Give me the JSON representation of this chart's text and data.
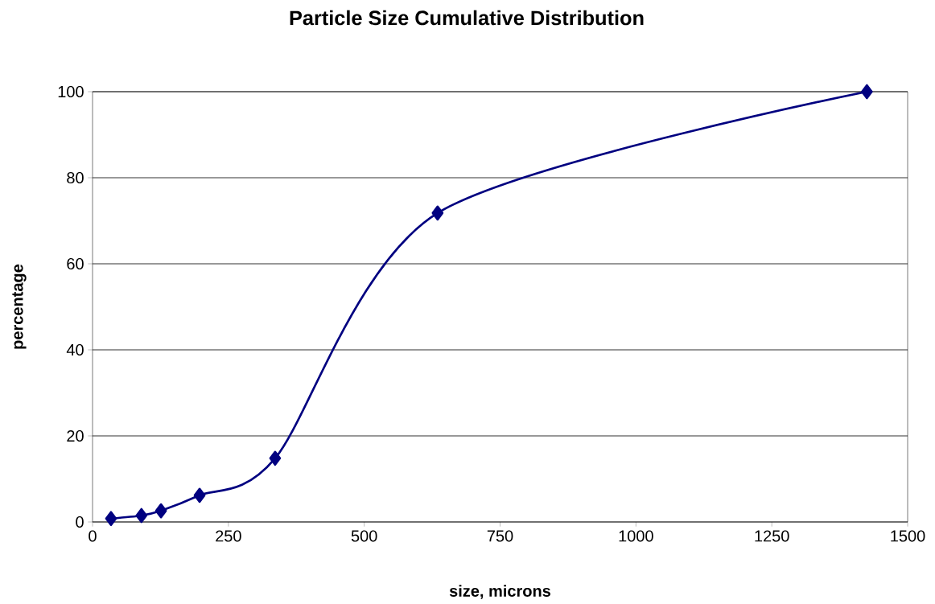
{
  "chart_data": {
    "type": "line",
    "title": "Particle Size Cumulative Distribution",
    "xlabel": "size, microns",
    "ylabel": "percentage",
    "series": [
      {
        "color": "#000080",
        "x": [
          34,
          90,
          126,
          197,
          336,
          635,
          1425
        ],
        "values": [
          0.8,
          1.5,
          2.6,
          6.2,
          14.8,
          71.8,
          100
        ]
      }
    ],
    "xlim": [
      0,
      1500
    ],
    "ylim": [
      0,
      100
    ],
    "xticks": [
      0,
      250,
      500,
      750,
      1000,
      1250,
      1500
    ],
    "yticks": [
      0,
      20,
      40,
      60,
      80,
      100
    ],
    "grid": "y",
    "marker": "diamond",
    "line_style": "solid"
  }
}
